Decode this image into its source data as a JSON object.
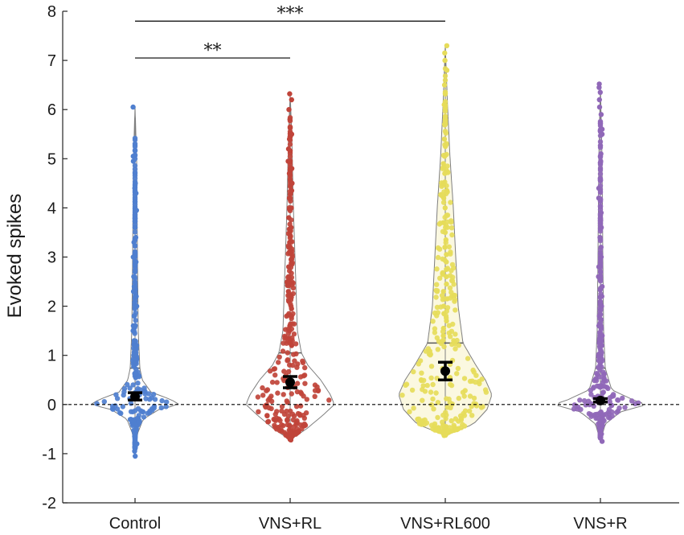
{
  "chart_data": {
    "type": "violin-swarm",
    "ylabel": "Evoked spikes",
    "xlabel": "",
    "ylim": [
      -2,
      8
    ],
    "yticks": [
      -2,
      -1,
      0,
      1,
      2,
      3,
      4,
      5,
      6,
      7,
      8
    ],
    "categories": [
      "Control",
      "VNS+RL",
      "VNS+RL600",
      "VNS+R"
    ],
    "colors": [
      "#4f7fcf",
      "#c0443a",
      "#e6dc5a",
      "#9068b8"
    ],
    "reference_line": 0,
    "groups": [
      {
        "name": "Control",
        "mean": 0.16,
        "sem_low": 0.09,
        "sem_high": 0.24,
        "min": -1.05,
        "max": 6.05,
        "quantile_line": 0.74,
        "outliers": [
          6.05,
          5.05,
          4.95,
          4.5,
          4.4,
          4.3,
          3.95,
          3.6,
          3.4,
          3.3,
          3.0,
          2.9,
          2.6,
          2.4,
          2.3,
          2.2,
          2.0,
          1.8,
          1.6,
          1.5,
          1.3,
          1.2,
          1.1,
          1.0,
          0.9,
          0.85,
          -0.5,
          -0.65,
          -0.8,
          -0.95,
          -1.05
        ]
      },
      {
        "name": "VNS+RL",
        "mean": 0.45,
        "sem_low": 0.34,
        "sem_high": 0.57,
        "min": -0.72,
        "max": 6.32,
        "quantile_line": 1.05,
        "outliers": [
          6.32,
          6.2,
          6.0,
          5.8,
          5.5,
          5.4,
          5.2,
          4.95,
          4.8,
          4.7,
          4.5,
          4.35,
          4.2,
          4.0,
          3.8,
          3.6,
          3.45,
          3.3,
          3.1,
          2.95,
          2.8,
          2.6,
          2.45,
          2.3,
          2.1,
          1.95,
          1.8,
          1.6,
          1.5,
          1.35,
          1.2,
          -0.55,
          -0.62,
          -0.72
        ]
      },
      {
        "name": "VNS+RL600",
        "mean": 0.68,
        "sem_low": 0.5,
        "sem_high": 0.86,
        "min": -0.63,
        "max": 7.3,
        "quantile_line": 1.25,
        "outliers": [
          7.3,
          7.15,
          7.0,
          6.8,
          6.5,
          6.1,
          5.7,
          5.4,
          5.25,
          5.05,
          4.9,
          4.7,
          4.5,
          4.35,
          4.2,
          4.0,
          3.85,
          3.7,
          3.5,
          3.35,
          3.2,
          3.05,
          2.9,
          2.75,
          2.6,
          2.45,
          2.3,
          2.15,
          2.0,
          1.85,
          1.7,
          1.55,
          1.4,
          -0.45,
          -0.55,
          -0.63
        ]
      },
      {
        "name": "VNS+R",
        "mean": 0.08,
        "sem_low": 0.05,
        "sem_high": 0.12,
        "min": -0.75,
        "max": 6.52,
        "quantile_line": 0.74,
        "outliers": [
          6.52,
          6.45,
          6.35,
          6.2,
          6.05,
          5.9,
          5.6,
          5.5,
          5.1,
          4.95,
          4.6,
          4.4,
          4.2,
          3.9,
          3.75,
          3.6,
          3.4,
          3.2,
          3.0,
          2.8,
          2.6,
          2.4,
          2.2,
          2.0,
          1.8,
          1.6,
          1.4,
          1.2,
          1.0,
          0.85,
          -0.45,
          -0.6,
          -0.75
        ]
      }
    ],
    "significance": [
      {
        "from": "Control",
        "to": "VNS+RL",
        "label": "**",
        "y": 7.05
      },
      {
        "from": "Control",
        "to": "VNS+RL600",
        "label": "***",
        "y": 7.8
      }
    ]
  }
}
